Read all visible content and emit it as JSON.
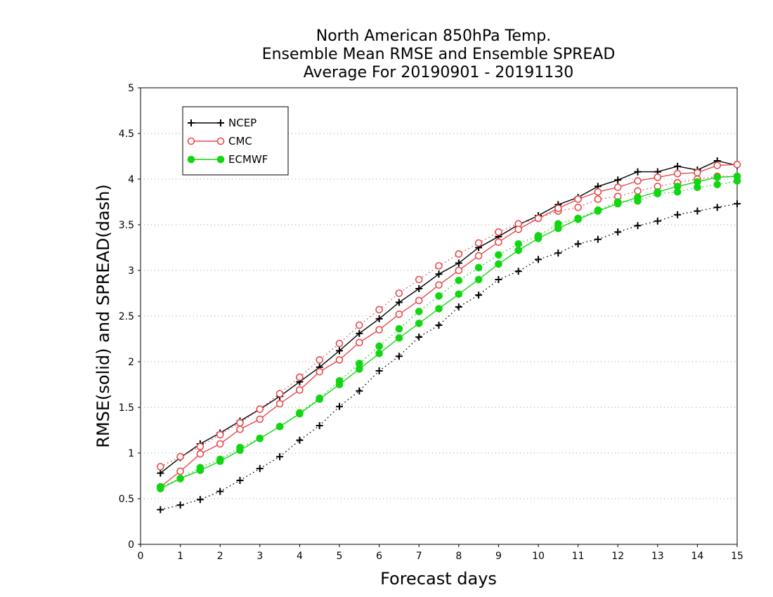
{
  "chart_data": {
    "type": "line",
    "title_lines": [
      "North American 850hPa Temp.",
      "Ensemble Mean RMSE and Ensemble SPREAD",
      "Average For 20190901 - 20191130"
    ],
    "xlabel": "Forecast days",
    "ylabel": "RMSE(solid) and SPREAD(dash)",
    "xlim": [
      0,
      15
    ],
    "ylim": [
      0,
      5
    ],
    "xticks": [
      0,
      1,
      2,
      3,
      4,
      5,
      6,
      7,
      8,
      9,
      10,
      11,
      12,
      13,
      14,
      15
    ],
    "yticks": [
      0,
      0.5,
      1,
      1.5,
      2,
      2.5,
      3,
      3.5,
      4,
      4.5,
      5
    ],
    "xtick_labels": [
      "0",
      "1",
      "2",
      "3",
      "4",
      "5",
      "6",
      "7",
      "8",
      "9",
      "10",
      "11",
      "12",
      "13",
      "14",
      "15"
    ],
    "ytick_labels": [
      "0",
      "0.5",
      "1",
      "1.5",
      "2",
      "2.5",
      "3",
      "3.5",
      "4",
      "4.5",
      "5"
    ],
    "grid": true,
    "legend_position": "top-left",
    "x": [
      0.5,
      1,
      1.5,
      2,
      2.5,
      3,
      3.5,
      4,
      4.5,
      5,
      5.5,
      6,
      6.5,
      7,
      7.5,
      8,
      8.5,
      9,
      9.5,
      10,
      10.5,
      11,
      11.5,
      12,
      12.5,
      13,
      13.5,
      14,
      14.5,
      15
    ],
    "series": [
      {
        "name": "NCEP",
        "color": "#000000",
        "marker": "plus",
        "rmse": [
          0.78,
          0.95,
          1.1,
          1.22,
          1.35,
          1.48,
          1.62,
          1.78,
          1.94,
          2.12,
          2.31,
          2.47,
          2.65,
          2.8,
          2.96,
          3.08,
          3.25,
          3.37,
          3.5,
          3.6,
          3.72,
          3.8,
          3.92,
          3.99,
          4.08,
          4.08,
          4.14,
          4.1,
          4.2,
          4.15
        ],
        "spread": [
          0.38,
          0.43,
          0.49,
          0.58,
          0.7,
          0.83,
          0.96,
          1.14,
          1.3,
          1.51,
          1.68,
          1.9,
          2.06,
          2.27,
          2.4,
          2.6,
          2.73,
          2.9,
          2.99,
          3.12,
          3.19,
          3.29,
          3.34,
          3.42,
          3.49,
          3.54,
          3.61,
          3.65,
          3.69,
          3.73
        ]
      },
      {
        "name": "CMC",
        "color": "#e8484b",
        "marker": "circle-open",
        "rmse": [
          0.63,
          0.8,
          0.99,
          1.1,
          1.26,
          1.37,
          1.54,
          1.69,
          1.89,
          2.02,
          2.21,
          2.35,
          2.52,
          2.67,
          2.84,
          3.0,
          3.16,
          3.31,
          3.45,
          3.57,
          3.68,
          3.78,
          3.86,
          3.91,
          3.98,
          4.02,
          4.06,
          4.07,
          4.15,
          4.16
        ],
        "spread": [
          0.85,
          0.96,
          1.07,
          1.2,
          1.33,
          1.48,
          1.65,
          1.83,
          2.02,
          2.2,
          2.4,
          2.57,
          2.75,
          2.9,
          3.05,
          3.18,
          3.3,
          3.42,
          3.51,
          3.57,
          3.65,
          3.69,
          3.78,
          3.81,
          3.87,
          3.92,
          3.96,
          4.0,
          4.03,
          4.03
        ]
      },
      {
        "name": "ECMWF",
        "color": "#12d612",
        "marker": "circle-filled",
        "rmse": [
          0.61,
          0.72,
          0.81,
          0.91,
          1.03,
          1.16,
          1.29,
          1.43,
          1.59,
          1.75,
          1.92,
          2.09,
          2.26,
          2.42,
          2.58,
          2.74,
          2.9,
          3.07,
          3.22,
          3.35,
          3.46,
          3.56,
          3.65,
          3.73,
          3.8,
          3.86,
          3.92,
          3.97,
          4.02,
          4.03
        ],
        "spread": [
          0.63,
          0.72,
          0.84,
          0.93,
          1.06,
          1.16,
          1.29,
          1.44,
          1.6,
          1.79,
          1.98,
          2.17,
          2.36,
          2.55,
          2.72,
          2.89,
          3.03,
          3.17,
          3.29,
          3.38,
          3.51,
          3.57,
          3.66,
          3.75,
          3.76,
          3.84,
          3.86,
          3.91,
          3.94,
          3.98
        ]
      }
    ]
  }
}
